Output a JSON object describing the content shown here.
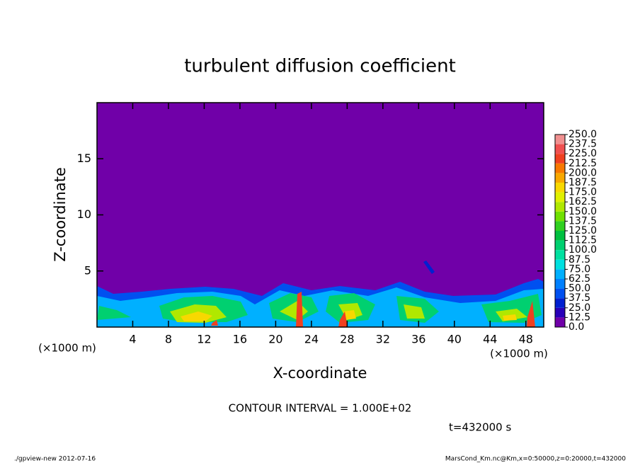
{
  "chart_data": {
    "type": "contour",
    "title": "turbulent diffusion coefficient",
    "x_label": "X-coordinate",
    "y_label": "Z-coordinate",
    "x_unit": "(×1000 m)",
    "xlim": [
      0,
      50
    ],
    "ylim": [
      0,
      20
    ],
    "xticks": [
      4,
      8,
      12,
      16,
      20,
      24,
      28,
      32,
      36,
      40,
      44,
      48
    ],
    "yticks": [
      5,
      10,
      15
    ],
    "levels": [
      {
        "value": 0,
        "label": "0.0"
      },
      12.5,
      {
        "value": 25,
        "label": "25.0"
      },
      37.5,
      {
        "value": 50,
        "label": "50.0"
      },
      62.5,
      {
        "value": 75,
        "label": "75.0"
      },
      87.5,
      {
        "value": 100,
        "label": "100.0"
      },
      112.5,
      {
        "value": 125,
        "label": "125.0"
      },
      137.5,
      {
        "value": 150,
        "label": "150.0"
      },
      162.5,
      {
        "value": 175,
        "label": "175.0"
      },
      187.5,
      {
        "value": 200,
        "label": "200.0"
      },
      212.5,
      {
        "value": 225,
        "label": "225.0"
      },
      237.5,
      {
        "value": 250,
        "label": "250.0"
      }
    ],
    "colors": [
      "#7000a8",
      "#2800b8",
      "#0020d0",
      "#0050f0",
      "#0080ff",
      "#00b0ff",
      "#00e0e0",
      "#00e0a0",
      "#00d070",
      "#00c040",
      "#30d020",
      "#70e000",
      "#b0e800",
      "#e0f000",
      "#f8d800",
      "#f8a800",
      "#f87800",
      "#f04020",
      "#f05050",
      "#f09090"
    ],
    "contour_interval": "CONTOUR INTERVAL = 1.000E+02",
    "time_label": "t=432000 s",
    "footer_left": "./gpview-new  2012-07-16",
    "footer_right": "MarsCond_Km.nc@Km,x=0:50000,z=0:20000,t=432000"
  }
}
